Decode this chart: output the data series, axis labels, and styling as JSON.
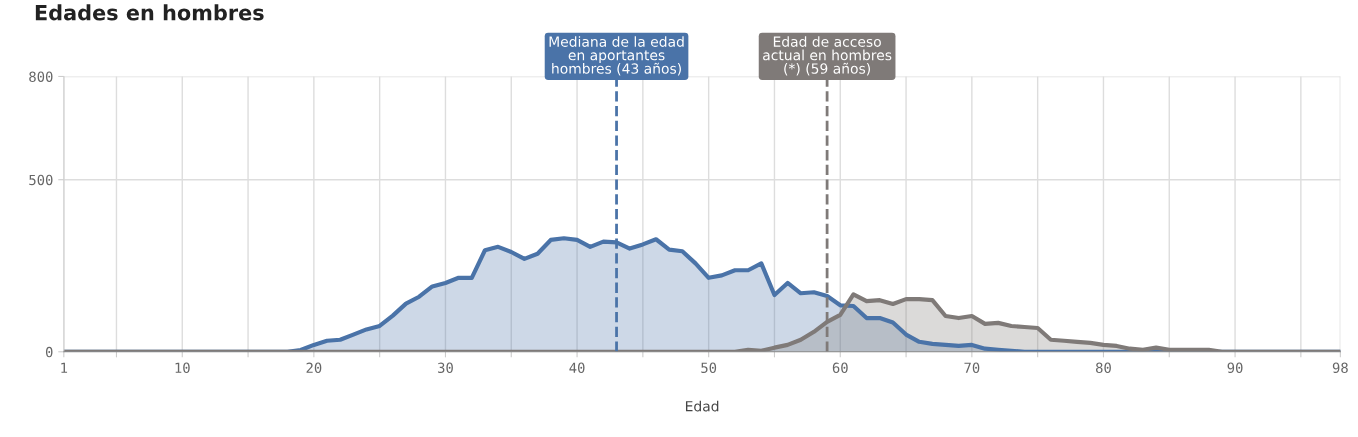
{
  "chart_data": {
    "type": "area",
    "title": "Edades en hombres",
    "xlabel": "Edad",
    "x": [
      1,
      5,
      10,
      15,
      18,
      19,
      20,
      21,
      22,
      23,
      24,
      25,
      26,
      27,
      28,
      29,
      30,
      31,
      32,
      33,
      34,
      35,
      36,
      37,
      38,
      39,
      40,
      41,
      42,
      43,
      44,
      45,
      46,
      47,
      48,
      49,
      50,
      51,
      52,
      53,
      54,
      55,
      56,
      57,
      58,
      59,
      60,
      61,
      62,
      63,
      64,
      65,
      66,
      67,
      68,
      69,
      70,
      71,
      72,
      73,
      74,
      75,
      76,
      77,
      78,
      79,
      80,
      81,
      82,
      83,
      84,
      85,
      86,
      87,
      88,
      89,
      90,
      95,
      98
    ],
    "series": [
      {
        "color": "#4a73a8",
        "values": [
          0,
          0,
          0,
          0,
          0,
          5,
          20,
          32,
          35,
          50,
          65,
          75,
          105,
          140,
          160,
          190,
          200,
          215,
          215,
          295,
          305,
          290,
          270,
          285,
          325,
          330,
          325,
          305,
          320,
          318,
          300,
          312,
          327,
          297,
          292,
          257,
          215,
          222,
          237,
          237,
          257,
          165,
          200,
          170,
          173,
          162,
          135,
          133,
          98,
          98,
          85,
          50,
          29,
          23,
          20,
          17,
          20,
          9,
          6,
          3,
          0,
          0,
          0,
          0,
          0,
          0,
          0,
          0,
          0,
          0,
          0,
          0,
          0,
          0,
          0,
          0,
          0,
          0,
          0
        ]
      },
      {
        "color": "#7f7a78",
        "values": [
          0,
          0,
          0,
          0,
          0,
          0,
          0,
          0,
          0,
          0,
          0,
          0,
          0,
          0,
          0,
          0,
          0,
          0,
          0,
          0,
          0,
          0,
          0,
          0,
          0,
          0,
          0,
          0,
          0,
          0,
          0,
          0,
          0,
          0,
          0,
          0,
          0,
          0,
          0,
          6,
          3,
          12,
          20,
          35,
          58,
          87,
          107,
          167,
          147,
          150,
          139,
          153,
          153,
          150,
          104,
          98,
          104,
          81,
          84,
          75,
          72,
          69,
          35,
          32,
          29,
          26,
          20,
          17,
          9,
          6,
          12,
          6,
          6,
          6,
          6,
          0,
          0,
          0,
          0
        ]
      }
    ],
    "xlim": [
      1,
      98
    ],
    "xticks": [
      1,
      {
        "value": 5,
        "label": null
      },
      10,
      {
        "value": 15,
        "label": null
      },
      20,
      {
        "value": 25,
        "label": null
      },
      30,
      {
        "value": 35,
        "label": null
      },
      40,
      {
        "value": 45,
        "label": null
      },
      50,
      {
        "value": 55,
        "label": null
      },
      60,
      {
        "value": 65,
        "label": null
      },
      70,
      {
        "value": 75,
        "label": null
      },
      80,
      {
        "value": 85,
        "label": null
      },
      90,
      {
        "value": 95,
        "label": null
      },
      98
    ],
    "ylim": [
      0,
      800
    ],
    "yticks": [
      0,
      500,
      800
    ],
    "grid": true,
    "line_style": "solid",
    "ref_lines": [
      {
        "axis": "x",
        "value": 43,
        "label": "Mediana de la edad\nen aportantes\nhombres (43 años)",
        "color": "#4a73a8",
        "line_style": "dashed"
      },
      {
        "axis": "x",
        "value": 59,
        "label": "Edad de acceso\nactual en hombres\n(*) (59 años)",
        "color": "#7f7a78",
        "line_style": "dashed"
      }
    ]
  }
}
